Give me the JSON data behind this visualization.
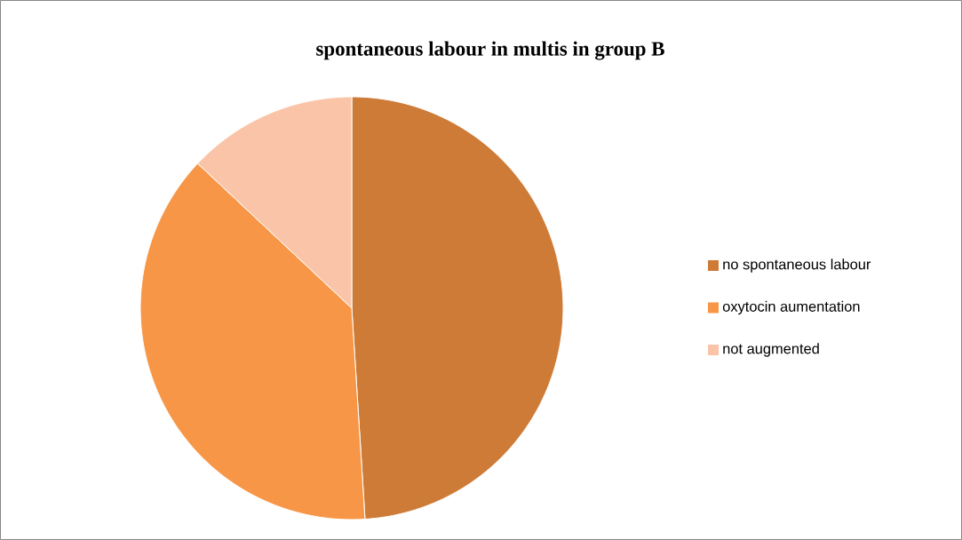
{
  "chart_data": {
    "type": "pie",
    "title": "spontaneous labour in multis in group B",
    "categories": [
      "no spontaneous labour",
      "oxytocin aumentation",
      "not augmented"
    ],
    "values": [
      49,
      38,
      13
    ],
    "colors": [
      "#cd7b37",
      "#f79646",
      "#fac4a8"
    ],
    "legend": "right"
  }
}
